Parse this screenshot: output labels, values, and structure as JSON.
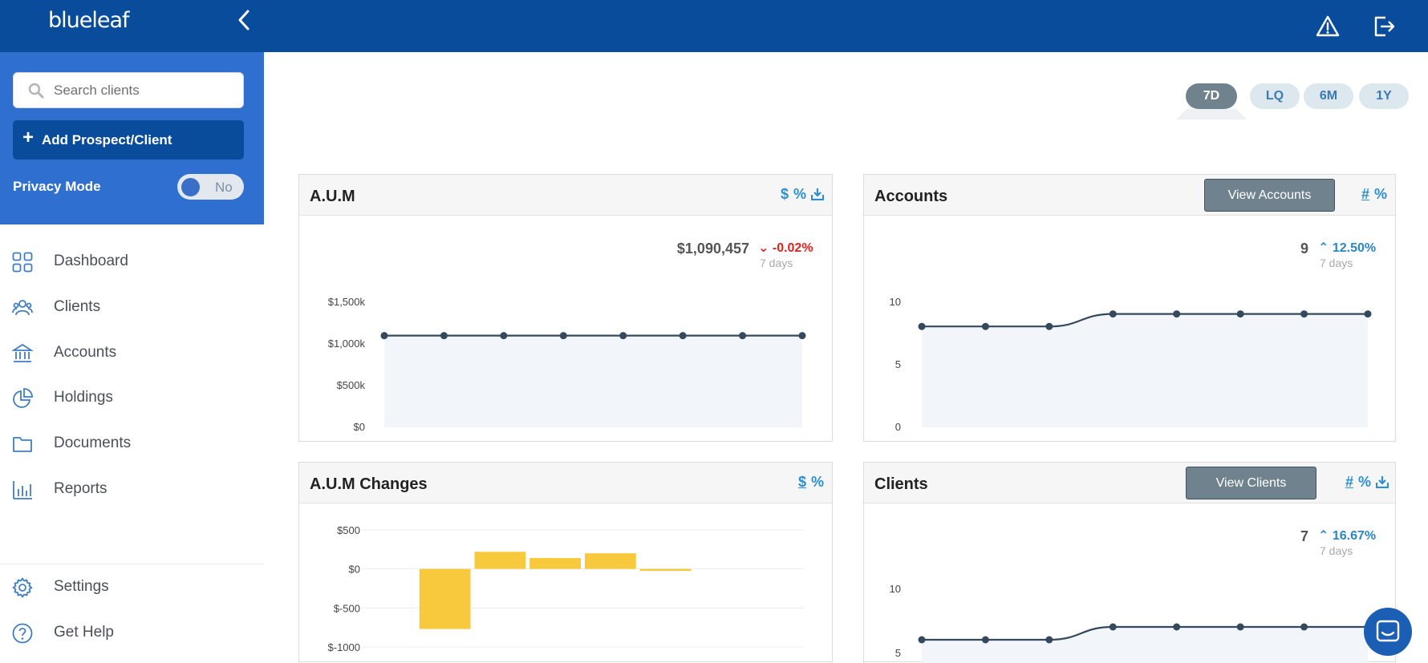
{
  "header": {
    "logo_text": "blueleaf",
    "icons": [
      "alert-icon",
      "logout-icon"
    ]
  },
  "sidebar": {
    "search": {
      "placeholder": "Search clients",
      "value": ""
    },
    "add_button": "Add Prospect/Client",
    "privacy": {
      "label": "Privacy Mode",
      "toggle_value": "No"
    },
    "nav": [
      {
        "label": "Dashboard",
        "icon": "grid-icon"
      },
      {
        "label": "Clients",
        "icon": "users-icon"
      },
      {
        "label": "Accounts",
        "icon": "bank-icon"
      },
      {
        "label": "Holdings",
        "icon": "pie-chart-icon"
      },
      {
        "label": "Documents",
        "icon": "folder-icon"
      },
      {
        "label": "Reports",
        "icon": "bar-chart-icon"
      }
    ],
    "bottom_nav": [
      {
        "label": "Settings",
        "icon": "gear-icon"
      },
      {
        "label": "Get Help",
        "icon": "help-icon"
      }
    ]
  },
  "ranges": [
    {
      "label": "7D",
      "active": true
    },
    {
      "label": "LQ",
      "active": false
    },
    {
      "label": "6M",
      "active": false
    },
    {
      "label": "1Y",
      "active": false
    }
  ],
  "colors": {
    "brand": "#0a4c9c",
    "sidebar": "#2f6fcf",
    "line": "#34495e",
    "bar": "#f8c93c",
    "negative": "#e0221e",
    "positive": "#2b86c6"
  },
  "cards": {
    "aum": {
      "title": "A.U.M",
      "tools": [
        "$",
        "%"
      ],
      "value": "$1,090,457",
      "change": "-0.02%",
      "period": "7 days"
    },
    "accounts": {
      "title": "Accounts",
      "button": "View Accounts",
      "tools": [
        "#",
        "%"
      ],
      "value": "9",
      "change": "12.50%",
      "period": "7 days"
    },
    "aum_changes": {
      "title": "A.U.M Changes",
      "tools": [
        "$",
        "%"
      ]
    },
    "clients": {
      "title": "Clients",
      "button": "View Clients",
      "tools": [
        "#",
        "%"
      ],
      "value": "7",
      "change": "16.67%",
      "period": "7 days"
    }
  },
  "chart_data": [
    {
      "type": "area",
      "name": "aum",
      "x": [
        1,
        2,
        3,
        4,
        5,
        6,
        7,
        8
      ],
      "values": [
        1090000,
        1090000,
        1090000,
        1090000,
        1090000,
        1090000,
        1090000,
        1090000
      ],
      "ylim": [
        0,
        1500000
      ],
      "ytick_labels": [
        "$1,500k",
        "$1,000k",
        "$500k",
        "$0"
      ],
      "yticks": [
        1500000,
        1000000,
        500000,
        0
      ],
      "grid": false
    },
    {
      "type": "area",
      "name": "accounts",
      "x": [
        1,
        2,
        3,
        4,
        5,
        6,
        7,
        8
      ],
      "values": [
        8,
        8,
        8,
        9,
        9,
        9,
        9,
        9
      ],
      "ylim": [
        0,
        10
      ],
      "ytick_labels": [
        "10",
        "5",
        "0"
      ],
      "yticks": [
        10,
        5,
        0
      ],
      "grid": false
    },
    {
      "type": "bar",
      "name": "aum_changes",
      "x": [
        1,
        2,
        3,
        4,
        5,
        6,
        7,
        8
      ],
      "values": [
        0,
        -770,
        220,
        140,
        200,
        -25,
        0,
        0
      ],
      "ylim": [
        -1000,
        500
      ],
      "ytick_labels": [
        "$500",
        "$0",
        "$-500",
        "$-1000"
      ],
      "yticks": [
        500,
        0,
        -500,
        -1000
      ],
      "grid": true
    },
    {
      "type": "area",
      "name": "clients",
      "x": [
        1,
        2,
        3,
        4,
        5,
        6,
        7,
        8
      ],
      "values": [
        6,
        6,
        6,
        7,
        7,
        7,
        7,
        7
      ],
      "ylim": [
        5,
        10
      ],
      "ytick_labels": [
        "10",
        "5"
      ],
      "yticks": [
        10,
        5
      ],
      "grid": false
    }
  ]
}
